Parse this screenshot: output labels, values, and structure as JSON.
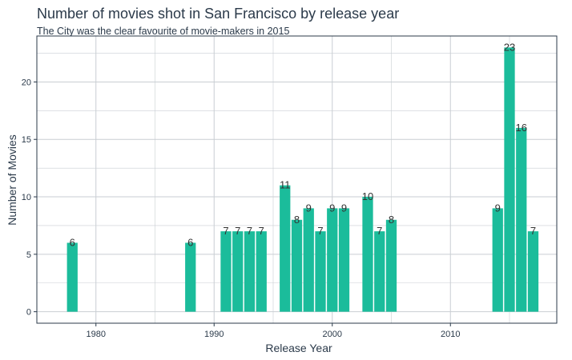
{
  "chart_data": {
    "type": "bar",
    "title": "Number of movies shot in San Francisco by release year",
    "subtitle": "The City was the clear favourite of movie-makers in 2015",
    "xlabel": "Release Year",
    "ylabel": "Number of Movies",
    "x": [
      1978,
      1988,
      1991,
      1992,
      1993,
      1994,
      1996,
      1997,
      1998,
      1999,
      2000,
      2001,
      2003,
      2004,
      2005,
      2014,
      2015,
      2016,
      2017
    ],
    "values": [
      6,
      6,
      7,
      7,
      7,
      7,
      11,
      8,
      9,
      7,
      9,
      9,
      10,
      7,
      8,
      9,
      23,
      16,
      7
    ],
    "xlim": [
      1975,
      2019
    ],
    "ylim": [
      -1,
      24
    ],
    "xticks": [
      1980,
      1990,
      2000,
      2010
    ],
    "yticks": [
      0,
      5,
      10,
      15,
      20
    ],
    "grid": true,
    "legend": "none",
    "bar_color": "#1bbc9b",
    "grid_color": "#c9ced3",
    "frame_color": "#2b3a4a"
  }
}
